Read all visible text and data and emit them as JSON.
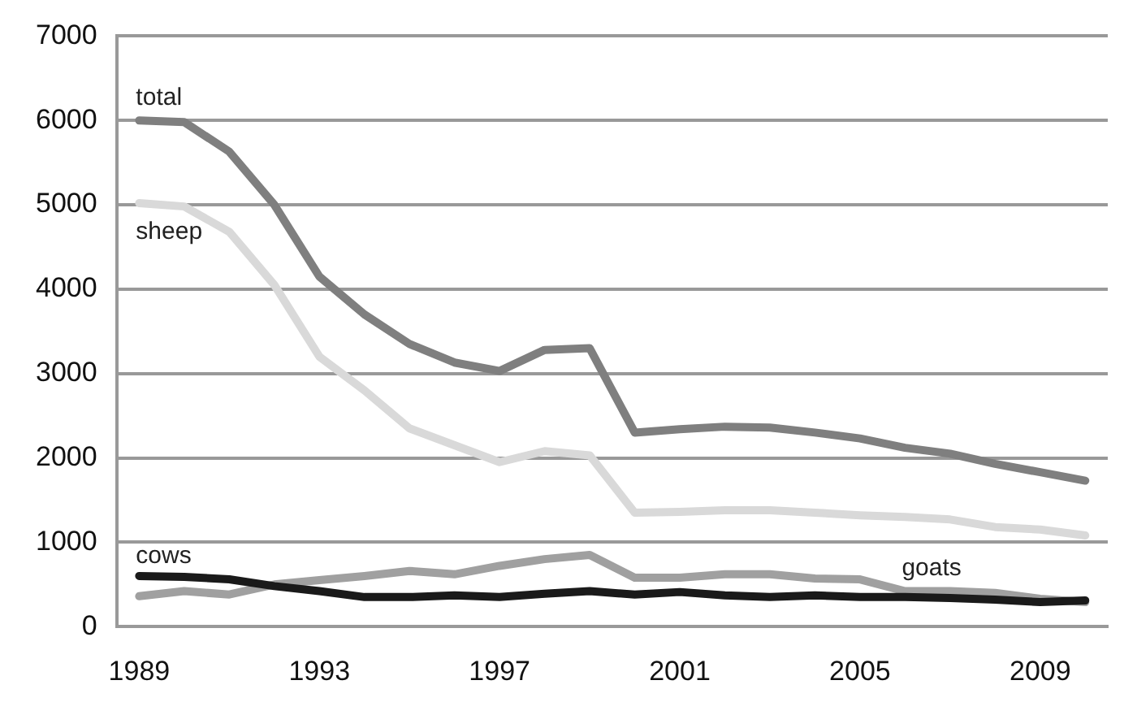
{
  "chart_data": {
    "type": "line",
    "categories": [
      "1989",
      null,
      null,
      null,
      "1993",
      null,
      null,
      null,
      "1997",
      null,
      null,
      null,
      "2001",
      null,
      null,
      null,
      "2005",
      null,
      null,
      null,
      "2009",
      null
    ],
    "series": [
      {
        "name": "total",
        "color": "#7f7f7f",
        "values": [
          6000,
          5980,
          5630,
          5000,
          4150,
          3700,
          3350,
          3130,
          3030,
          3280,
          3300,
          2300,
          2340,
          2370,
          2360,
          2300,
          2230,
          2120,
          2050,
          1930,
          1830,
          1730
        ]
      },
      {
        "name": "sheep",
        "color": "#d9d9d9",
        "values": [
          5020,
          4980,
          4680,
          4050,
          3200,
          2800,
          2350,
          2150,
          1950,
          2080,
          2030,
          1350,
          1360,
          1380,
          1380,
          1350,
          1320,
          1300,
          1270,
          1180,
          1150,
          1080
        ]
      },
      {
        "name": "cows",
        "color": "#1a1a1a",
        "values": [
          600,
          590,
          560,
          480,
          420,
          350,
          350,
          370,
          350,
          390,
          420,
          380,
          410,
          370,
          350,
          370,
          350,
          350,
          340,
          320,
          290,
          310
        ]
      },
      {
        "name": "goats",
        "color": "#a0a0a0",
        "values": [
          360,
          420,
          380,
          500,
          550,
          600,
          660,
          620,
          720,
          800,
          850,
          580,
          580,
          620,
          620,
          570,
          560,
          420,
          420,
          400,
          330,
          290
        ]
      }
    ],
    "ylim": [
      0,
      7000
    ],
    "yticks": [
      0,
      1000,
      2000,
      3000,
      4000,
      5000,
      6000,
      7000
    ],
    "grid": "y",
    "legend": false,
    "marker": "none",
    "line_style": "solid"
  }
}
